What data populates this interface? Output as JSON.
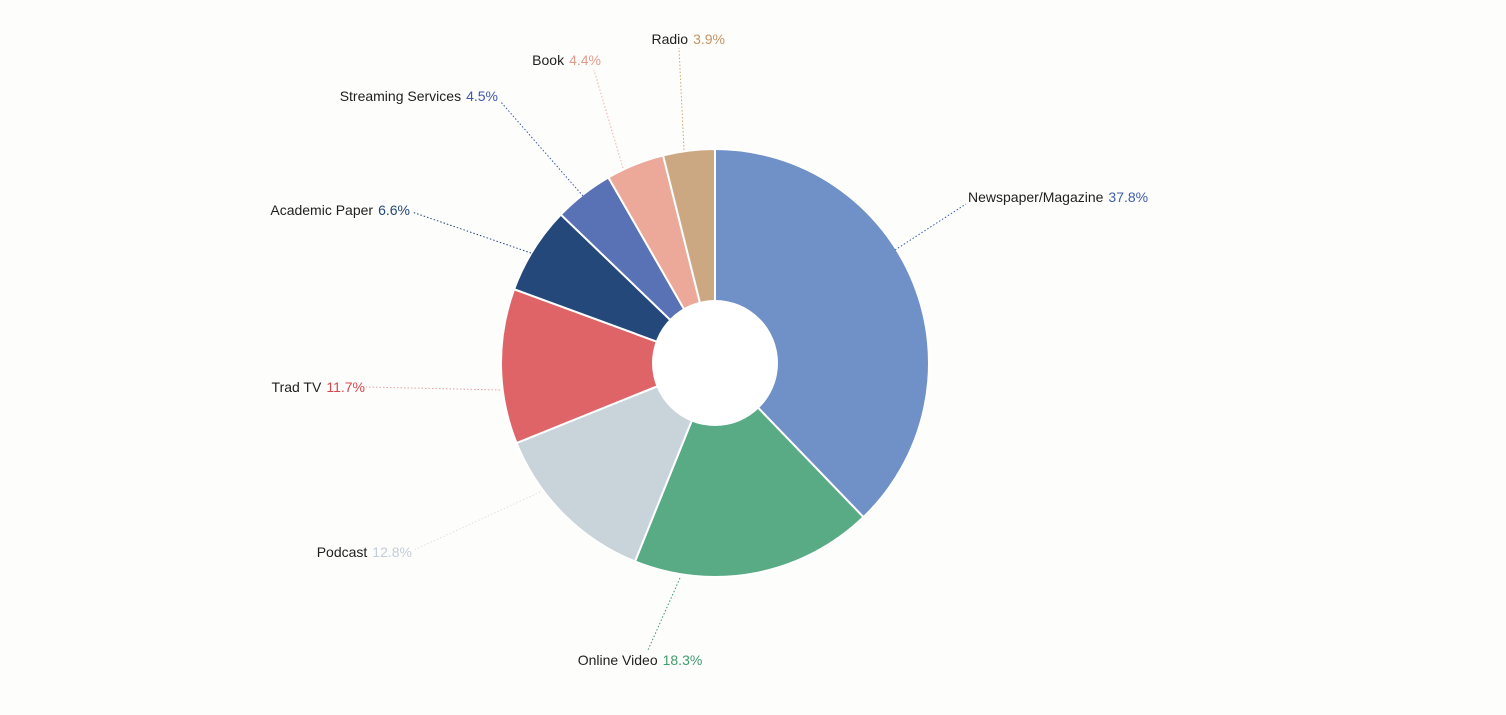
{
  "chart_data": {
    "type": "pie",
    "donut": true,
    "title": "",
    "start_angle_deg": 0,
    "direction": "clockwise",
    "slices": [
      {
        "label": "Newspaper/Magazine",
        "value": 37.8,
        "value_label": "37.8%",
        "color": "#7091c8",
        "label_color": "#3e5ea8",
        "line_color": "#3e5ea8"
      },
      {
        "label": "Online Video",
        "value": 18.3,
        "value_label": "18.3%",
        "color": "#59ab85",
        "label_color": "#3f9c6e",
        "line_color": "#3f9c6e"
      },
      {
        "label": "Podcast",
        "value": 12.8,
        "value_label": "12.8%",
        "color": "#c9d3da",
        "label_color": "#c3cdd6",
        "line_color": "#dde3e8"
      },
      {
        "label": "Trad TV",
        "value": 11.7,
        "value_label": "11.7%",
        "color": "#de6468",
        "label_color": "#d8474e",
        "line_color": "#e4a1a4"
      },
      {
        "label": "Academic Paper",
        "value": 6.6,
        "value_label": "6.6%",
        "color": "#234879",
        "label_color": "#234879",
        "line_color": "#234879"
      },
      {
        "label": "Streaming Services",
        "value": 4.5,
        "value_label": "4.5%",
        "color": "#5971b5",
        "label_color": "#3e58a8",
        "line_color": "#3e58a8"
      },
      {
        "label": "Book",
        "value": 4.4,
        "value_label": "4.4%",
        "color": "#eca99a",
        "label_color": "#e49b8b",
        "line_color": "#eab4a8"
      },
      {
        "label": "Radio",
        "value": 3.9,
        "value_label": "3.9%",
        "color": "#cba882",
        "label_color": "#c79461",
        "line_color": "#d2a878"
      }
    ]
  }
}
